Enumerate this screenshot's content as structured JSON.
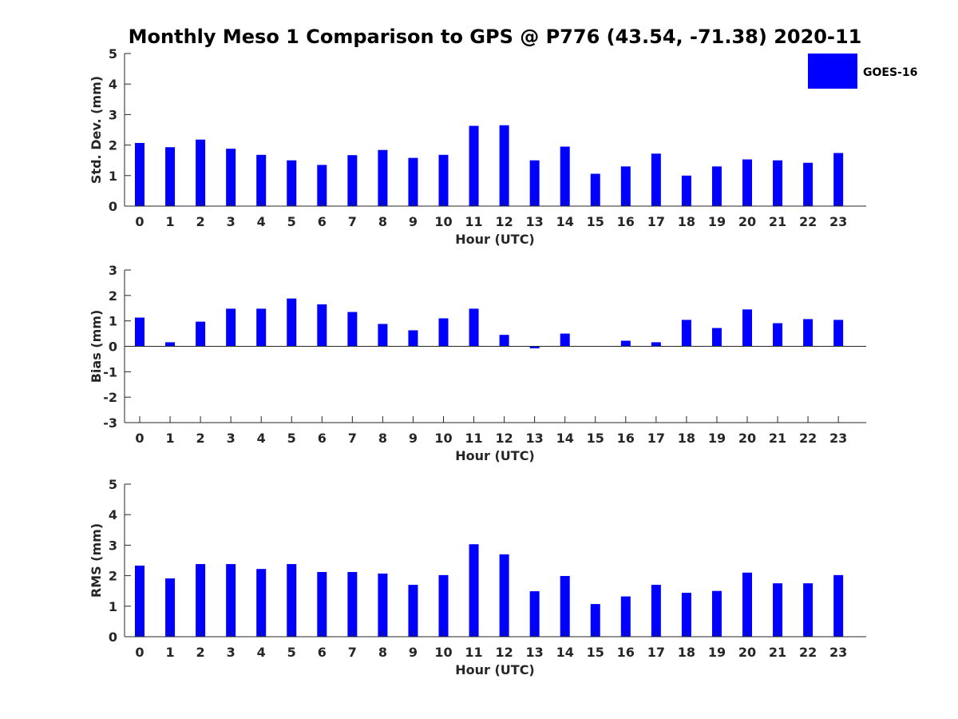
{
  "chart_data": {
    "title": "Monthly Meso 1 Comparison to GPS @ P776 (43.54, -71.38) 2020-11",
    "legend": {
      "label": "GOES-16",
      "color": "#0000ff",
      "position": "top-right"
    },
    "panels": [
      {
        "id": "std",
        "type": "bar",
        "ylabel": "Std. Dev. (mm)",
        "xlabel": "Hour (UTC)",
        "ylim": [
          0,
          5
        ],
        "yticks": [
          0,
          1,
          2,
          3,
          4,
          5
        ],
        "x": [
          0,
          1,
          2,
          3,
          4,
          5,
          6,
          7,
          8,
          9,
          10,
          11,
          12,
          13,
          14,
          15,
          16,
          17,
          18,
          19,
          20,
          21,
          22,
          23
        ],
        "values": [
          2.07,
          1.93,
          2.18,
          1.88,
          1.68,
          1.5,
          1.35,
          1.67,
          1.84,
          1.58,
          1.68,
          2.63,
          2.65,
          1.5,
          1.95,
          1.06,
          1.3,
          1.72,
          1.0,
          1.3,
          1.53,
          1.5,
          1.42,
          1.74
        ]
      },
      {
        "id": "bias",
        "type": "bar",
        "ylabel": "Bias (mm)",
        "xlabel": "Hour (UTC)",
        "ylim": [
          -3,
          3
        ],
        "yticks": [
          -3,
          -2,
          -1,
          0,
          1,
          2,
          3
        ],
        "x": [
          0,
          1,
          2,
          3,
          4,
          5,
          6,
          7,
          8,
          9,
          10,
          11,
          12,
          13,
          14,
          15,
          16,
          17,
          18,
          19,
          20,
          21,
          22,
          23
        ],
        "values": [
          1.13,
          0.16,
          0.97,
          1.48,
          1.48,
          1.88,
          1.65,
          1.35,
          0.88,
          0.63,
          1.1,
          1.48,
          0.45,
          -0.08,
          0.5,
          0.0,
          0.22,
          0.16,
          1.04,
          0.72,
          1.45,
          0.91,
          1.07,
          1.04
        ]
      },
      {
        "id": "rms",
        "type": "bar",
        "ylabel": "RMS (mm)",
        "xlabel": "Hour (UTC)",
        "ylim": [
          0,
          5
        ],
        "yticks": [
          0,
          1,
          2,
          3,
          4,
          5
        ],
        "x": [
          0,
          1,
          2,
          3,
          4,
          5,
          6,
          7,
          8,
          9,
          10,
          11,
          12,
          13,
          14,
          15,
          16,
          17,
          18,
          19,
          20,
          21,
          22,
          23
        ],
        "values": [
          2.33,
          1.91,
          2.38,
          2.38,
          2.22,
          2.38,
          2.12,
          2.12,
          2.07,
          1.7,
          2.02,
          3.03,
          2.7,
          1.49,
          1.99,
          1.07,
          1.32,
          1.7,
          1.44,
          1.5,
          2.1,
          1.75,
          1.75,
          2.02
        ]
      }
    ]
  }
}
